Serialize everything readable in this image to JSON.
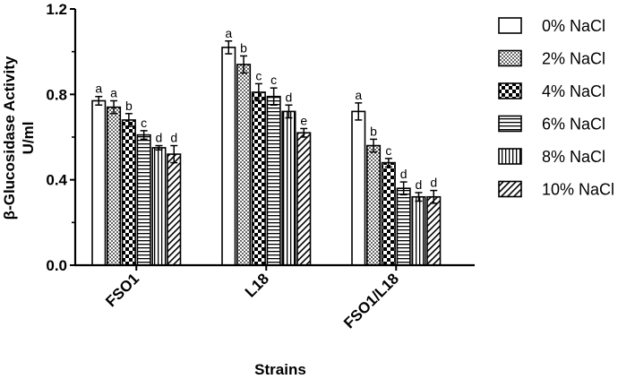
{
  "chart_data": {
    "type": "bar",
    "xlabel": "Strains",
    "ylabel_line1": "β-Glucosidase Activity",
    "ylabel_line2": "U/ml",
    "ylim": [
      0,
      1.2
    ],
    "yticks": [
      "0.0",
      "0.4",
      "0.8",
      "1.2"
    ],
    "categories": [
      "FSO1",
      "L18",
      "FSO1/L18"
    ],
    "legend_position": "right",
    "series": [
      {
        "name": "0% NaCl",
        "pattern": "plain",
        "values": [
          0.77,
          1.02,
          0.72
        ],
        "errors": [
          0.02,
          0.03,
          0.04
        ],
        "letters": [
          "a",
          "a",
          "a"
        ]
      },
      {
        "name": "2% NaCl",
        "pattern": "dots",
        "values": [
          0.74,
          0.94,
          0.56
        ],
        "errors": [
          0.03,
          0.04,
          0.03
        ],
        "letters": [
          "a",
          "b",
          "b"
        ]
      },
      {
        "name": "4% NaCl",
        "pattern": "checker",
        "values": [
          0.68,
          0.81,
          0.48
        ],
        "errors": [
          0.03,
          0.04,
          0.02
        ],
        "letters": [
          "b",
          "c",
          "c"
        ]
      },
      {
        "name": "6% NaCl",
        "pattern": "hlines",
        "values": [
          0.61,
          0.79,
          0.36
        ],
        "errors": [
          0.02,
          0.04,
          0.03
        ],
        "letters": [
          "c",
          "c",
          "d"
        ]
      },
      {
        "name": "8% NaCl",
        "pattern": "vlines",
        "values": [
          0.55,
          0.72,
          0.32
        ],
        "errors": [
          0.01,
          0.03,
          0.02
        ],
        "letters": [
          "d",
          "d",
          "d"
        ]
      },
      {
        "name": "10% NaCl",
        "pattern": "diag",
        "values": [
          0.52,
          0.62,
          0.32
        ],
        "errors": [
          0.04,
          0.02,
          0.03
        ],
        "letters": [
          "d",
          "e",
          "d"
        ]
      }
    ]
  }
}
